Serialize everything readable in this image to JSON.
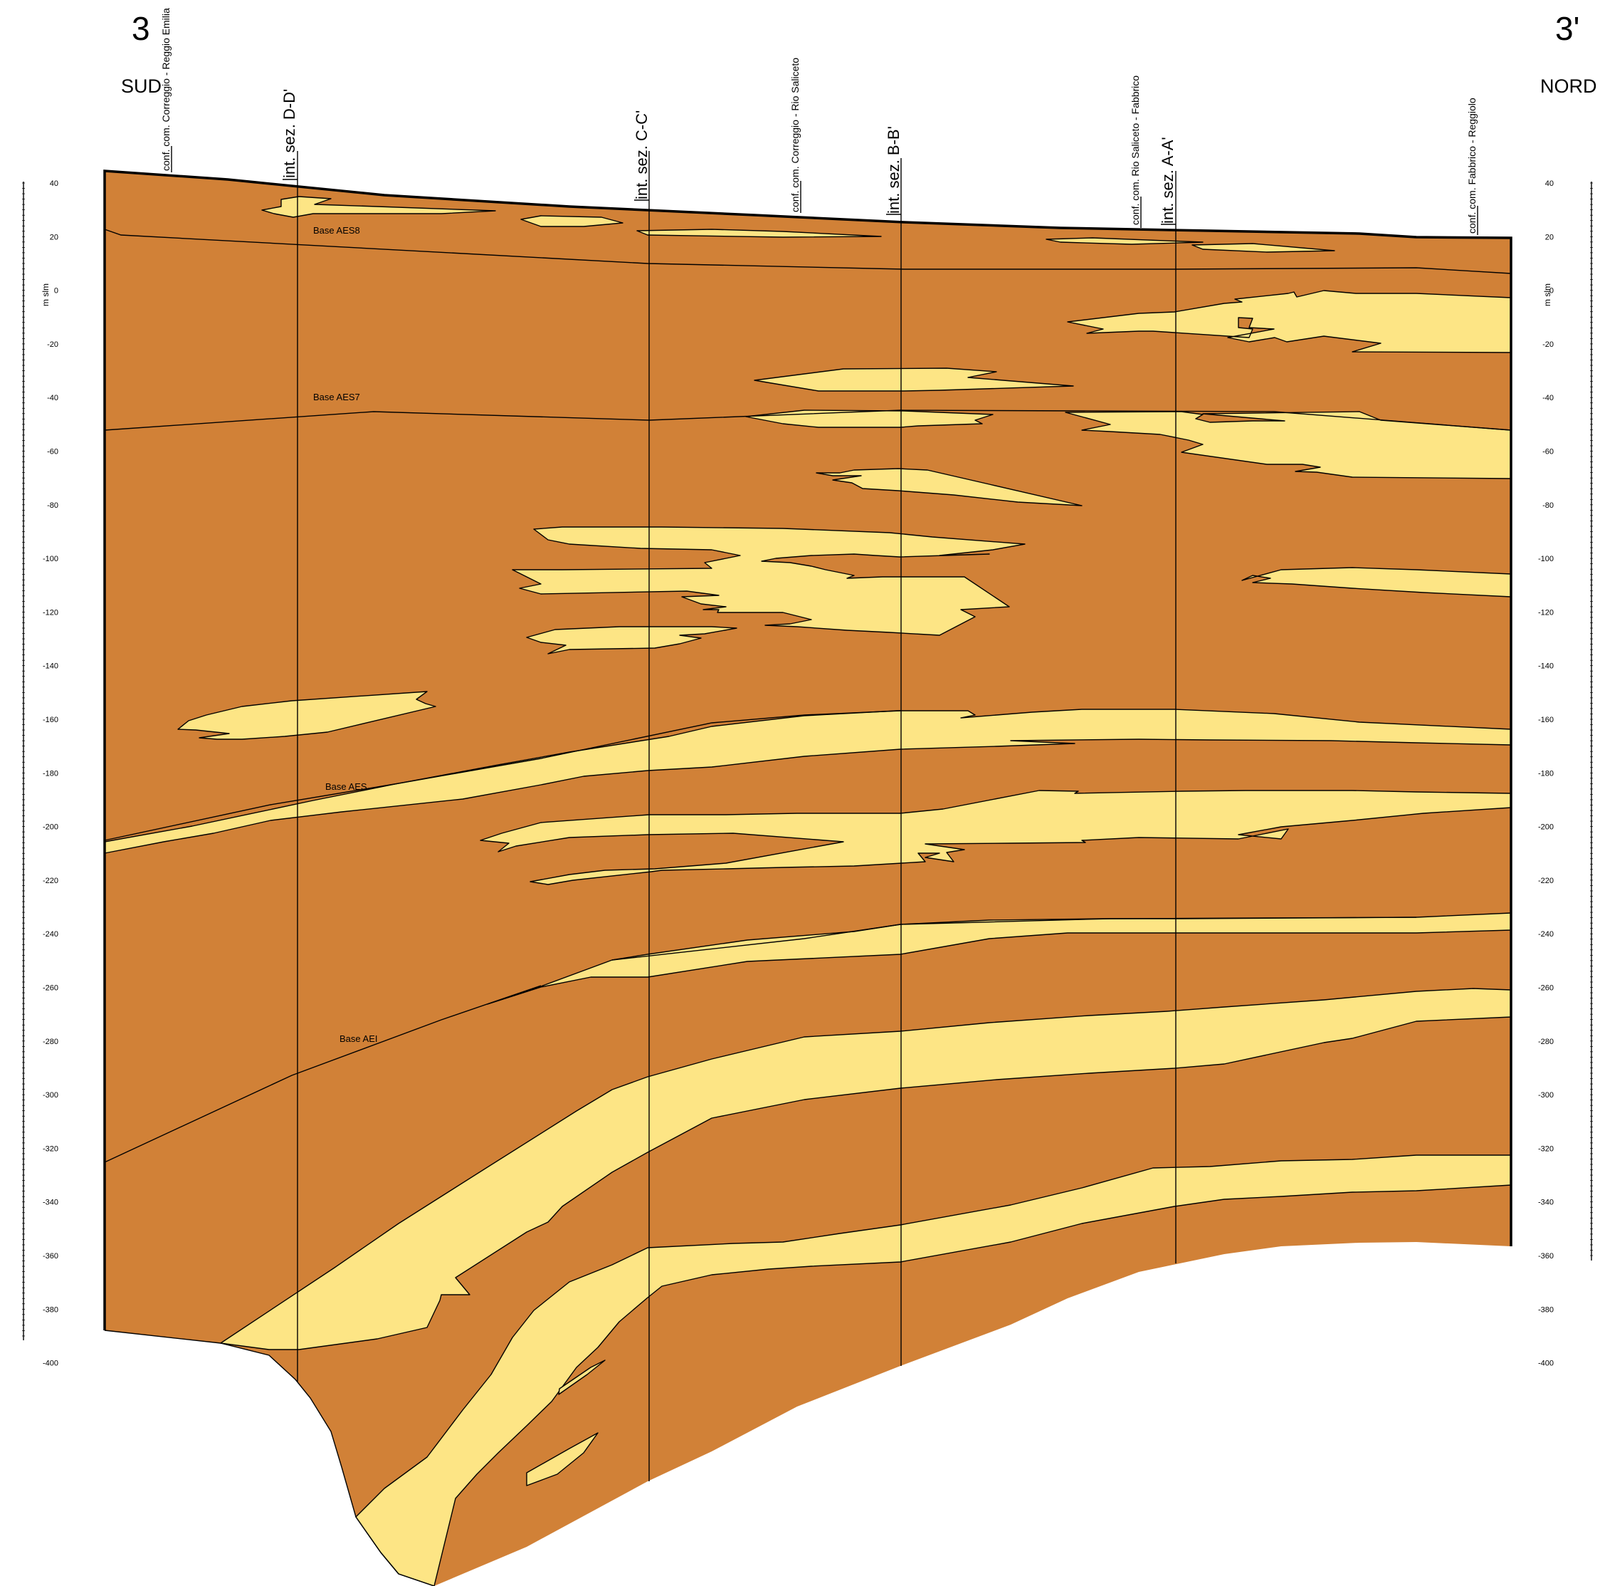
{
  "section": {
    "left_end": "3",
    "right_end": "3'",
    "left_direction": "SUD",
    "right_direction": "NORD",
    "vertical_unit": "m slm"
  },
  "axis": {
    "ticks": [
      "40",
      "20",
      "0",
      "-20",
      "-40",
      "-60",
      "-80",
      "-100",
      "-120",
      "-140",
      "-160",
      "-180",
      "-200",
      "-220",
      "-240",
      "-260",
      "-280",
      "-300",
      "-320",
      "-340",
      "-360",
      "-380",
      "-400"
    ]
  },
  "boundaries": [
    {
      "label": "conf. com. Correggio - Reggio Emilia"
    },
    {
      "label": "conf. com. Correggio - Rio Saliceto"
    },
    {
      "label": "conf. com. Rio Saliceto - Fabbrico"
    },
    {
      "label": "conf. com. Fabbrico - Reggiolo"
    }
  ],
  "intersections": [
    {
      "label": "int. sez. D-D'"
    },
    {
      "label": "int. sez. C-C'"
    },
    {
      "label": "int. sez. B-B'"
    },
    {
      "label": "int. sez. A-A'"
    }
  ],
  "units": [
    {
      "label": "Base AES8"
    },
    {
      "label": "Base AES7"
    },
    {
      "label": "Base AES"
    },
    {
      "label": "Base AEI"
    }
  ],
  "legend_colors": {
    "clay": "#d18137",
    "sand": "#fde585"
  }
}
